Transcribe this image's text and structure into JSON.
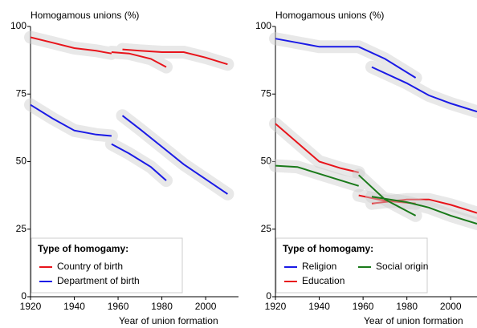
{
  "chart_data": [
    {
      "type": "line",
      "y_label": "Homogamous unions (%)",
      "x_label": "Year of union formation",
      "xlim": [
        1920,
        2015
      ],
      "ylim": [
        0,
        100
      ],
      "xticks": [
        1920,
        1940,
        1960,
        1980,
        2000
      ],
      "yticks": [
        0,
        25,
        50,
        75,
        100
      ],
      "grid": false,
      "legend_title": "Type of homogamy:",
      "legend": "lower left",
      "series": [
        {
          "name": "Country of birth",
          "color": "#e8141b",
          "x": [
            1920,
            1930,
            1940,
            1950,
            1957,
            null,
            1957,
            1965,
            1975,
            1982,
            null,
            1962,
            1970,
            1980,
            1990,
            2000,
            2010
          ],
          "values": [
            96,
            94,
            92,
            91,
            90,
            null,
            90.5,
            90,
            88,
            85,
            null,
            91.5,
            91,
            90.5,
            90.5,
            88.5,
            86
          ]
        },
        {
          "name": "Department of birth",
          "color": "#1a1ae6",
          "x": [
            1920,
            1930,
            1940,
            1950,
            1957,
            null,
            1957,
            1965,
            1975,
            1982,
            null,
            1962,
            1970,
            1980,
            1990,
            2000,
            2010
          ],
          "values": [
            71,
            66,
            61.5,
            60,
            59.5,
            null,
            56.5,
            53,
            48,
            43,
            null,
            67,
            62,
            55.5,
            49,
            43.5,
            38
          ]
        }
      ]
    },
    {
      "type": "line",
      "y_label": "Homogamous unions (%)",
      "x_label": "Year of union formation",
      "xlim": [
        1920,
        2012
      ],
      "ylim": [
        0,
        100
      ],
      "xticks": [
        1920,
        1940,
        1960,
        1980,
        2000
      ],
      "yticks": [
        0,
        25,
        50,
        75,
        100
      ],
      "grid": false,
      "legend_title": "Type of homogamy:",
      "legend": "lower left",
      "series": [
        {
          "name": "Religion",
          "color": "#1a1ae6",
          "x": [
            1920,
            1930,
            1940,
            1950,
            1958,
            null,
            1958,
            1970,
            1984,
            null,
            1964,
            1980,
            1990,
            2000,
            2012
          ],
          "values": [
            95.5,
            94,
            92.5,
            92.5,
            92.5,
            null,
            92.5,
            88,
            81,
            null,
            85,
            79,
            74.5,
            71.5,
            68.5
          ]
        },
        {
          "name": "Education",
          "color": "#e8141b",
          "x": [
            1920,
            1930,
            1940,
            1950,
            1958,
            null,
            1958,
            1970,
            1984,
            null,
            1964,
            1980,
            1990,
            2000,
            2012
          ],
          "values": [
            64,
            57,
            50,
            47.5,
            46,
            null,
            37.5,
            35.5,
            34.5,
            null,
            34.5,
            36,
            36,
            34,
            31
          ]
        },
        {
          "name": "Social origin",
          "color": "#1a7a1a",
          "x": [
            1920,
            1930,
            1940,
            1958,
            null,
            1958,
            1970,
            1984,
            null,
            1964,
            1980,
            1990,
            2000,
            2012
          ],
          "values": [
            48.5,
            48,
            45.5,
            41,
            null,
            45,
            36,
            30,
            null,
            37,
            35,
            33,
            30,
            27
          ]
        }
      ]
    }
  ]
}
